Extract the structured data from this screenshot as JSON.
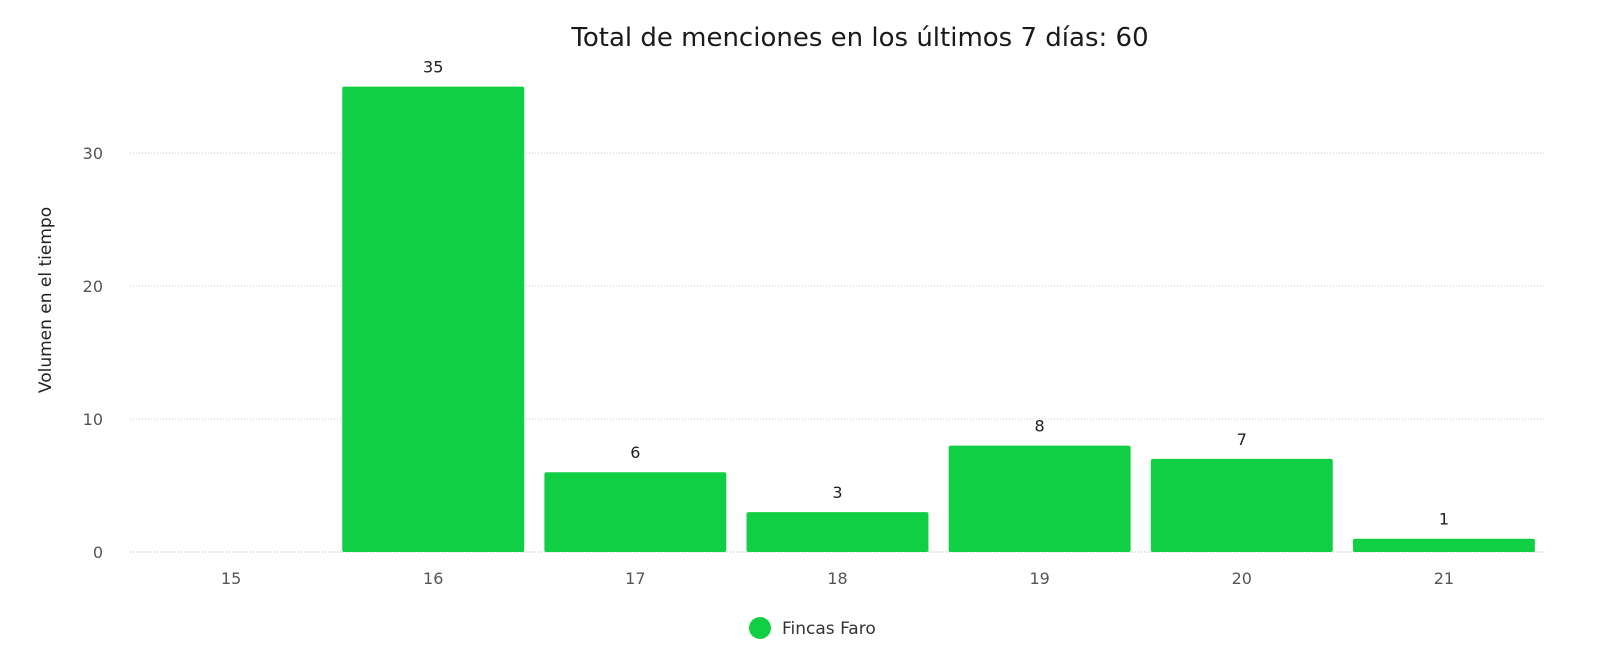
{
  "chart_data": {
    "type": "bar",
    "title": "Total de menciones en los últimos 7 días: 60",
    "xlabel": "",
    "ylabel": "Volumen en el tiempo",
    "categories": [
      "15",
      "16",
      "17",
      "18",
      "19",
      "20",
      "21"
    ],
    "series": [
      {
        "name": "Fincas Faro",
        "values": [
          0,
          35,
          6,
          3,
          8,
          7,
          1
        ],
        "data_labels": [
          "",
          "35",
          "6",
          "3",
          "8",
          "7",
          "1"
        ],
        "color": "#11cf45"
      }
    ],
    "yticks": [
      0,
      10,
      20,
      30
    ],
    "ylim": [
      0,
      37
    ],
    "grid": true,
    "legend_position": "bottom"
  }
}
